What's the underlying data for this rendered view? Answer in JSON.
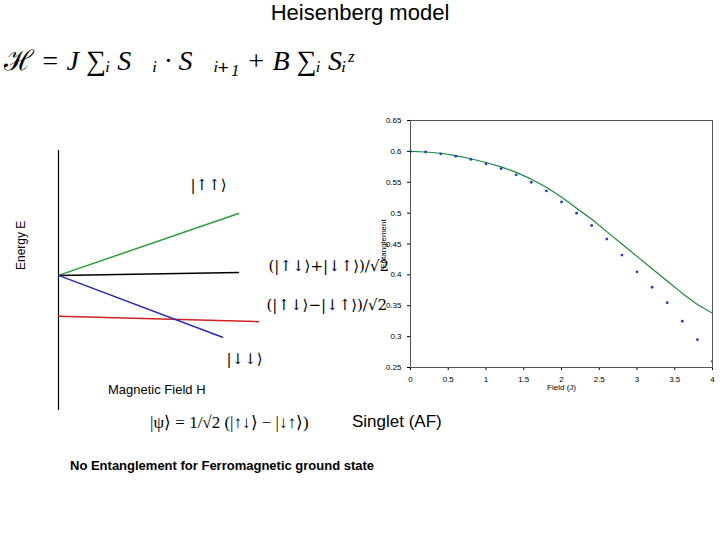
{
  "slide": {
    "title": "Heisenberg model",
    "formula": "ℋ = J ∑ᵢ S⃗ᵢ · S⃗ᵢ₊₁ + B ∑ᵢ Sᵢᶻ",
    "state": "|ψ⟩ = 1/√2 (|↑↓⟩ − |↓↑⟩)",
    "state_label": "Singlet (AF)",
    "note": "No Entanglement for Ferromagnetic ground state"
  },
  "chart_data": [
    {
      "type": "line",
      "xlabel": "Magnetic Field H",
      "ylabel": "Energy E",
      "tick_labels": false,
      "xlim": [
        0,
        3
      ],
      "ylim": [
        -2.25,
        2.08
      ],
      "series": [
        {
          "name": "|↑↑⟩",
          "color": "#2e9e3e",
          "x": [
            0,
            1.8
          ],
          "values": [
            0,
            1.03
          ]
        },
        {
          "name": "(|↑↓⟩+|↓↑⟩)/√2",
          "color": "#000000",
          "x": [
            0,
            1.8
          ],
          "values": [
            0,
            0.05
          ]
        },
        {
          "name": "(|↑↓⟩−|↓↑⟩)/√2",
          "color": "#d02020",
          "x": [
            0,
            2.0
          ],
          "values": [
            -0.68,
            -0.77
          ]
        },
        {
          "name": "|↓↓⟩",
          "color": "#2a2ab0",
          "x": [
            0,
            1.64
          ],
          "values": [
            0,
            -1.03
          ]
        }
      ]
    },
    {
      "type": "line",
      "xlabel": "Field (J)",
      "ylabel": "Entanglement",
      "xlim": [
        0,
        4
      ],
      "ylim": [
        0.25,
        0.65
      ],
      "xticks": [
        0,
        0.5,
        1,
        1.5,
        2,
        2.5,
        3,
        3.5,
        4
      ],
      "yticks": [
        0.25,
        0.3,
        0.35,
        0.4,
        0.45,
        0.5,
        0.55,
        0.6,
        0.65
      ],
      "x": [
        0,
        0.2,
        0.4,
        0.6,
        0.8,
        1.0,
        1.2,
        1.4,
        1.6,
        1.8,
        2.0,
        2.2,
        2.4,
        2.6,
        2.8,
        3.0,
        3.2,
        3.4,
        3.6,
        3.8,
        4.0
      ],
      "series": [
        {
          "type": "line",
          "color": "#1a8a3a",
          "line_style": "solid",
          "values": [
            0.6,
            0.599,
            0.597,
            0.593,
            0.588,
            0.582,
            0.575,
            0.566,
            0.555,
            0.542,
            0.526,
            0.508,
            0.49,
            0.47,
            0.45,
            0.43,
            0.41,
            0.39,
            0.37,
            0.352,
            0.338
          ]
        },
        {
          "type": "scatter",
          "color": "#1f3fbf",
          "marker": "dot",
          "values": [
            0.6,
            0.599,
            0.596,
            0.592,
            0.587,
            0.58,
            0.572,
            0.562,
            0.55,
            0.536,
            0.518,
            0.5,
            0.48,
            0.458,
            0.432,
            0.405,
            0.38,
            0.355,
            0.325,
            0.295,
            0.26
          ]
        }
      ]
    }
  ]
}
